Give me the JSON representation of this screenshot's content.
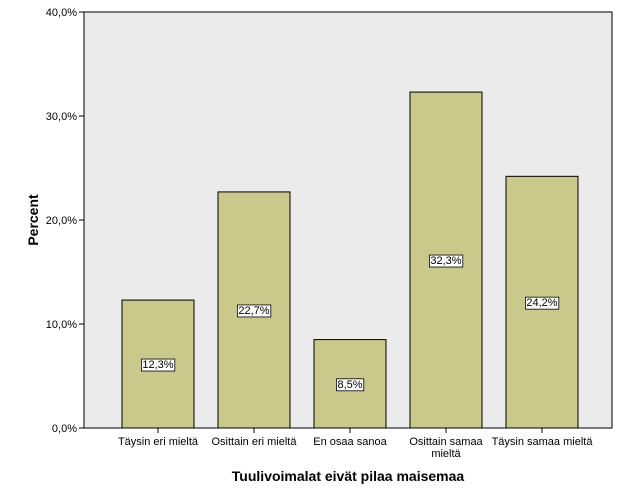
{
  "chart_data": {
    "type": "bar",
    "categories": [
      [
        "Täysin eri mieltä"
      ],
      [
        "Osittain eri mieltä"
      ],
      [
        "En osaa sanoa"
      ],
      [
        "Osittain samaa",
        "mieltä"
      ],
      [
        "Täysin samaa mieltä"
      ]
    ],
    "values": [
      12.3,
      22.7,
      8.5,
      32.3,
      24.2
    ],
    "data_labels": [
      "12,3%",
      "22,7%",
      "8,5%",
      "32,3%",
      "24,2%"
    ],
    "xlabel": "Tuulivoimalat eivät pilaa maisemaa",
    "ylabel": "Percent",
    "ylim": [
      0,
      40
    ],
    "yticks": [
      0,
      10,
      20,
      30,
      40
    ],
    "ytick_labels": [
      "0,0%",
      "10,0%",
      "20,0%",
      "30,0%",
      "40,0%"
    ],
    "grid": false,
    "legend": "none",
    "colors": {
      "bar_fill": "#c8c98a",
      "bar_stroke": "#000000",
      "plot_background": "#ebebeb"
    }
  }
}
